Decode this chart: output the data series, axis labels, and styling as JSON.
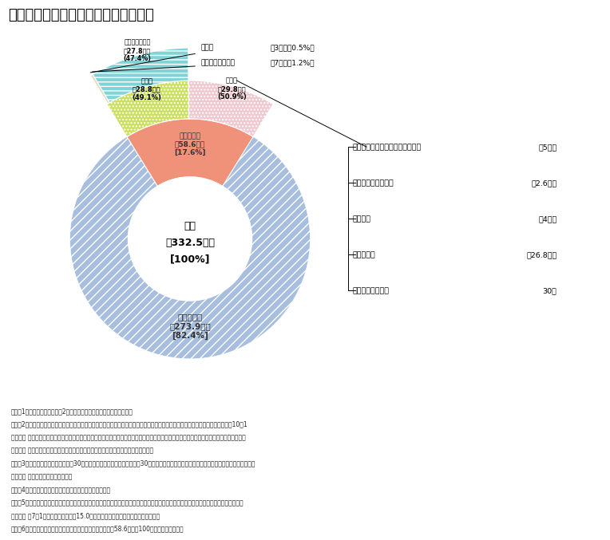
{
  "title": "国家公務員及び地方公務員の種類と数",
  "center_text": [
    "総計",
    "約332.5万人",
    "[100%]"
  ],
  "inner_ring": {
    "kokka_pct": 17.6,
    "chiho_pct": 82.4,
    "kokka_label": "国家公務員\n約58.6万人\n[17.6%]",
    "chiho_label": "地方公務員\n約273.9万人\n[82.4%]",
    "color_kokka": "#f0927a",
    "color_chiho": "#a8bede"
  },
  "mid_ring": {
    "tokubetsu_pct": 50.9,
    "ippan_pct": 49.1,
    "tokubetsu_label": "特別職\n約29.8万人\n(50.9%)",
    "ippan_label": "一般職\n約28.8万人\n(49.1%)",
    "color_tokubetsu": "#f0c8d0",
    "color_ippan": "#cce060"
  },
  "outer_ring": {
    "kyuyo_pct": 47.4,
    "gyosei_pct": 1.2,
    "kensatsu_pct": 0.5,
    "kyuyo_label": "給与法適用職員\n約27.8万人\n(47.4%)",
    "color_kyuyo": "#80d4d8",
    "color_gyosei": "#e8d8c0",
    "color_kensatsu": "#e0e0e0"
  },
  "annotations_top_left": "検察官",
  "annotations_top_left2": "行政執行法人職員",
  "annotations_top_right1": "約3千人（0.5%）",
  "annotations_top_right2": "約7千人（1.2%）",
  "annotations_right": [
    [
      "大臣、副大臣、政務官、大公使等",
      "約5百人"
    ],
    [
      "裁判官、裁判所職員",
      "約2.6万人"
    ],
    [
      "国会議員",
      "約4千人"
    ],
    [
      "防衛省職員",
      "約26.8万人"
    ],
    [
      "行政執行法人役員",
      "30人"
    ]
  ],
  "notes": [
    "（注）1　国家公務員の数は、2を除き、令和２年度末予算定員である。",
    "　　　2　行政執行法人の役員数は、「令和元年度独立行政法人等の役員に就いている退職公務員等の状況の公表」における令和元年10月1日現在の常勤役員数であり（内閣官房内閣人事局資料）、行政執行法人の職員数は、「令和２年行政執行法人の常勤職員数に関する報告」における令和２年１月１日現在の常勤職員数である（総務省資料）。",
    "　　　3　地方公務員の数は、「平成30年地方公共団体定員管理調査（平成30年４月１日現在）」に基づき集計した一般職に属する地方公務員数である（総務省資料）。",
    "　　　4　数値は端数処理の関係で合致しない場合がある。",
    "　　　5　このほかに、一般職国家公務員の非常勤職員（行政執行法人の職員等を除く）の数は「一般職国家公務員在職状況統計表（令和元年7月1日現在）」により約15.0万人である（内閣官房内閣人事局資料）。",
    "　　　6　国家公務員の内訳の構成比（　）は、国家公務員約58.6万人を100としたものである。"
  ]
}
